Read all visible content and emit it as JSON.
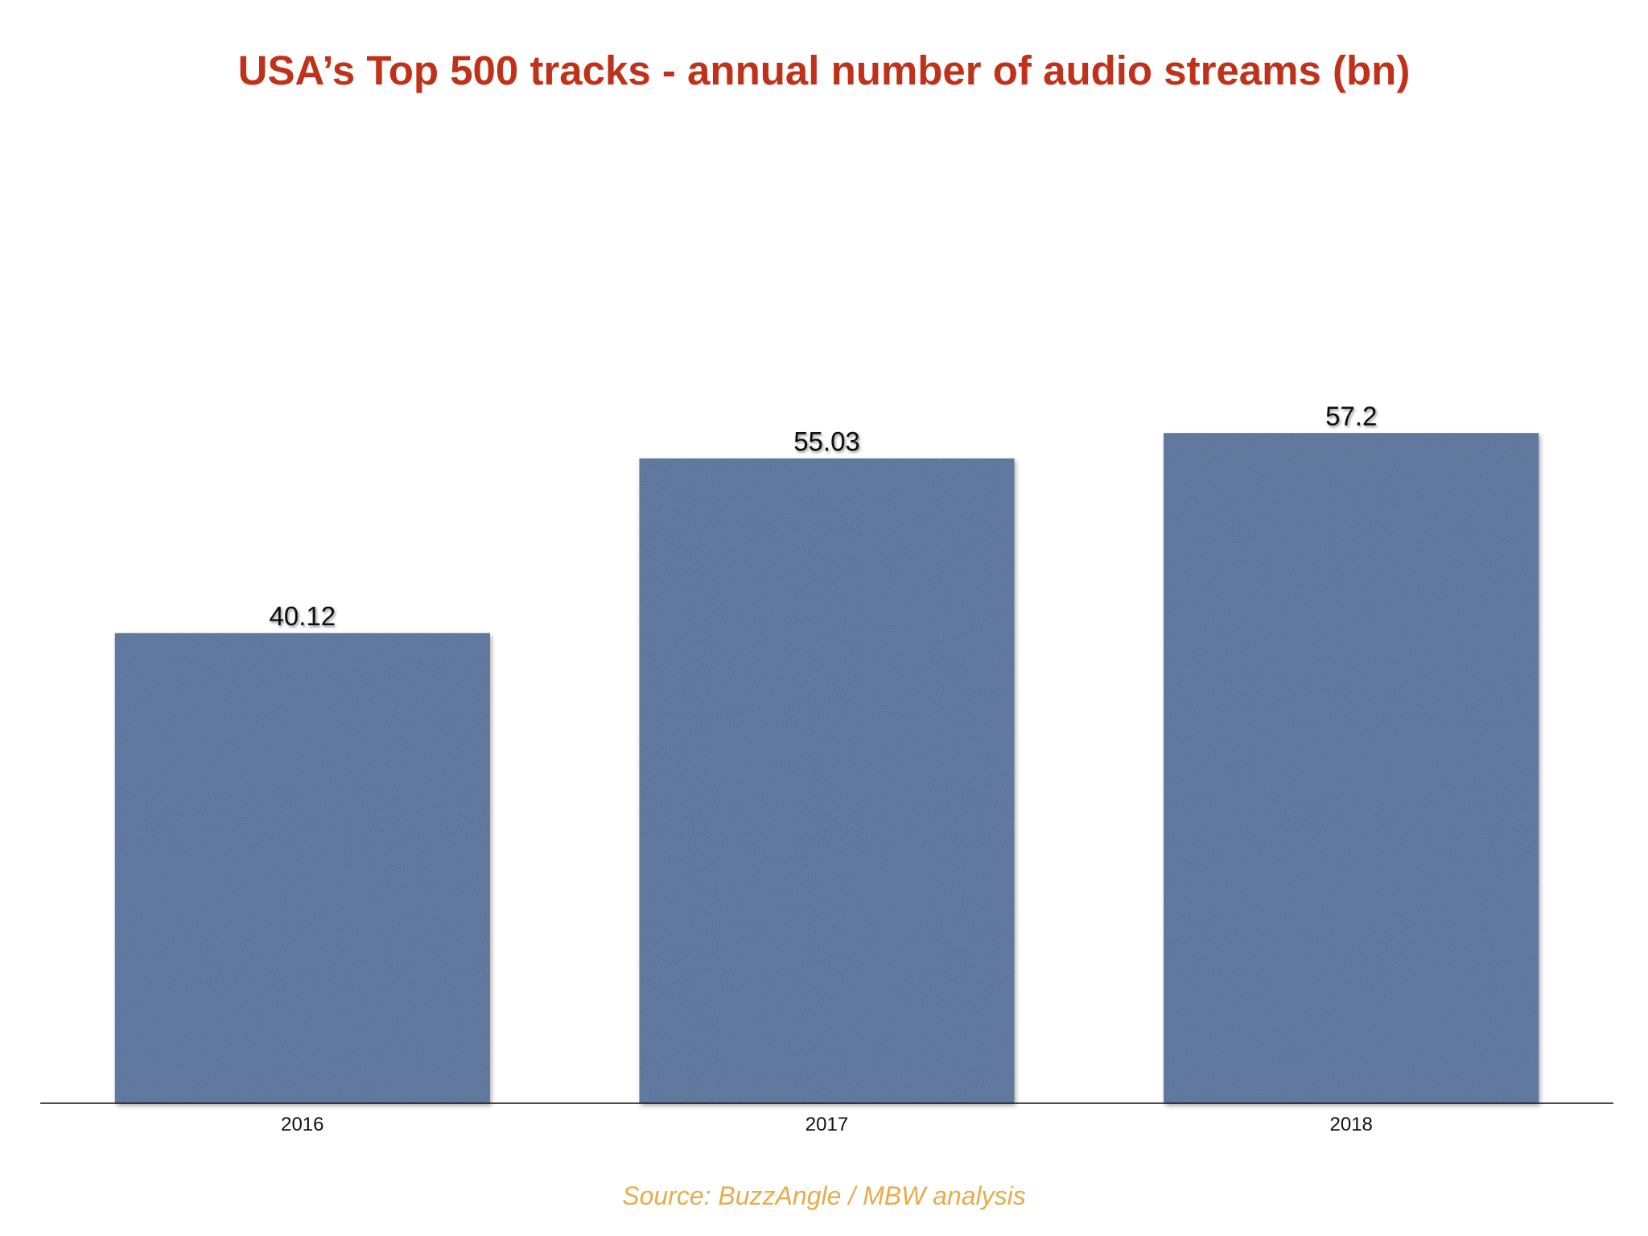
{
  "chart_data": {
    "type": "bar",
    "title": "USA’s Top 500 tracks - annual number of audio streams (bn)",
    "categories": [
      "2016",
      "2017",
      "2018"
    ],
    "values": [
      40.12,
      55.03,
      57.2
    ],
    "value_labels": [
      "40.12",
      "55.03",
      "57.2"
    ],
    "xlabel": "",
    "ylabel": "",
    "ylim": [
      0,
      77
    ],
    "grid": false,
    "bar_color": "#4a6894",
    "title_color": "#c0311a",
    "source_color": "#e8ab4a"
  },
  "source": "Source: BuzzAngle / MBW analysis"
}
